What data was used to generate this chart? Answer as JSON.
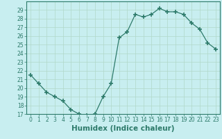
{
  "title": "",
  "xlabel": "Humidex (Indice chaleur)",
  "ylabel": "",
  "x": [
    0,
    1,
    2,
    3,
    4,
    5,
    6,
    7,
    8,
    9,
    10,
    11,
    12,
    13,
    14,
    15,
    16,
    17,
    18,
    19,
    20,
    21,
    22,
    23
  ],
  "y": [
    21.5,
    20.5,
    19.5,
    19.0,
    18.5,
    17.5,
    17.0,
    16.8,
    17.0,
    19.0,
    20.5,
    25.8,
    26.5,
    28.5,
    28.2,
    28.5,
    29.2,
    28.8,
    28.8,
    28.5,
    27.5,
    26.8,
    25.2,
    24.5
  ],
  "line_color": "#2d7a6a",
  "marker": "+",
  "marker_size": 4,
  "marker_lw": 1.2,
  "bg_color": "#c8eef0",
  "grid_color": "#b0d8c8",
  "ylim": [
    17,
    30
  ],
  "yticks": [
    17,
    18,
    19,
    20,
    21,
    22,
    23,
    24,
    25,
    26,
    27,
    28,
    29
  ],
  "xticks": [
    0,
    1,
    2,
    3,
    4,
    5,
    6,
    7,
    8,
    9,
    10,
    11,
    12,
    13,
    14,
    15,
    16,
    17,
    18,
    19,
    20,
    21,
    22,
    23
  ],
  "tick_fontsize": 5.5,
  "xlabel_fontsize": 7.5
}
